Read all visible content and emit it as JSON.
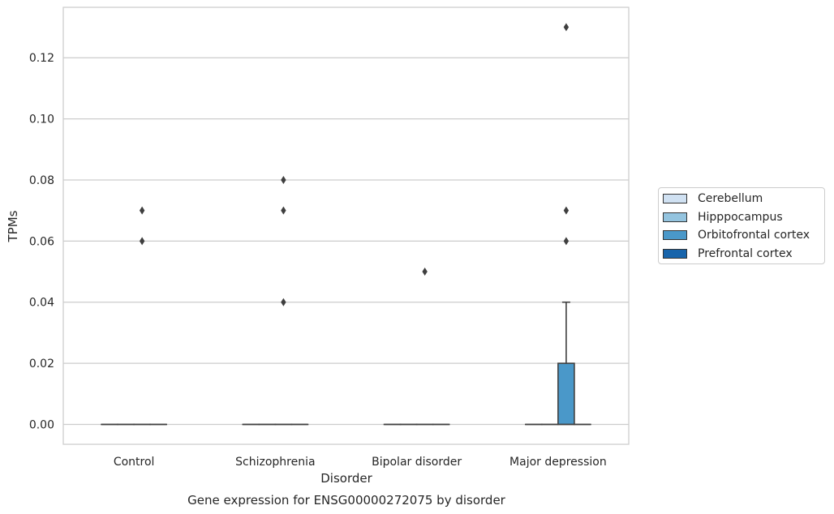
{
  "chart_data": {
    "type": "box",
    "title": "Gene expression for ENSG00000272075 by disorder",
    "xlabel": "Disorder",
    "ylabel": "TPMs",
    "ylim": [
      -0.0065,
      0.1365
    ],
    "yticks": [
      0.0,
      0.02,
      0.04,
      0.06,
      0.08,
      0.1,
      0.12
    ],
    "ytick_labels": [
      "0.00",
      "0.02",
      "0.04",
      "0.06",
      "0.08",
      "0.10",
      "0.12"
    ],
    "grid": true,
    "legend_position": "right",
    "categories": [
      "Control",
      "Schizophrenia",
      "Bipolar disorder",
      "Major depression"
    ],
    "series": [
      {
        "name": "Cerebellum",
        "color": "#d0e1f2",
        "boxes": [
          {
            "q1": 0,
            "median": 0,
            "q3": 0,
            "whislo": 0,
            "whishi": 0,
            "fliers": []
          },
          {
            "q1": 0,
            "median": 0,
            "q3": 0,
            "whislo": 0,
            "whishi": 0,
            "fliers": []
          },
          {
            "q1": 0,
            "median": 0,
            "q3": 0,
            "whislo": 0,
            "whishi": 0,
            "fliers": []
          },
          {
            "q1": 0,
            "median": 0,
            "q3": 0,
            "whislo": 0,
            "whishi": 0,
            "fliers": []
          }
        ]
      },
      {
        "name": "Hipppocampus",
        "color": "#94c4df",
        "boxes": [
          {
            "q1": 0,
            "median": 0,
            "q3": 0,
            "whislo": 0,
            "whishi": 0,
            "fliers": []
          },
          {
            "q1": 0,
            "median": 0,
            "q3": 0,
            "whislo": 0,
            "whishi": 0,
            "fliers": []
          },
          {
            "q1": 0,
            "median": 0,
            "q3": 0,
            "whislo": 0,
            "whishi": 0,
            "fliers": []
          },
          {
            "q1": 0,
            "median": 0,
            "q3": 0,
            "whislo": 0,
            "whishi": 0,
            "fliers": []
          }
        ]
      },
      {
        "name": "Orbitofrontal cortex",
        "color": "#4a98c9",
        "boxes": [
          {
            "q1": 0,
            "median": 0,
            "q3": 0,
            "whislo": 0,
            "whishi": 0,
            "fliers": [
              0.06,
              0.07
            ]
          },
          {
            "q1": 0,
            "median": 0,
            "q3": 0,
            "whislo": 0,
            "whishi": 0,
            "fliers": [
              0.04,
              0.07,
              0.08
            ]
          },
          {
            "q1": 0,
            "median": 0,
            "q3": 0,
            "whislo": 0,
            "whishi": 0,
            "fliers": [
              0.05
            ]
          },
          {
            "q1": 0,
            "median": 0,
            "q3": 0.02,
            "whislo": 0,
            "whishi": 0.04,
            "fliers": [
              0.06,
              0.07,
              0.13
            ]
          }
        ]
      },
      {
        "name": "Prefrontal cortex",
        "color": "#1764ab",
        "boxes": [
          {
            "q1": 0,
            "median": 0,
            "q3": 0,
            "whislo": 0,
            "whishi": 0,
            "fliers": []
          },
          {
            "q1": 0,
            "median": 0,
            "q3": 0,
            "whislo": 0,
            "whishi": 0,
            "fliers": []
          },
          {
            "q1": 0,
            "median": 0,
            "q3": 0,
            "whislo": 0,
            "whishi": 0,
            "fliers": []
          },
          {
            "q1": 0,
            "median": 0,
            "q3": 0,
            "whislo": 0,
            "whishi": 0,
            "fliers": []
          }
        ]
      }
    ]
  }
}
